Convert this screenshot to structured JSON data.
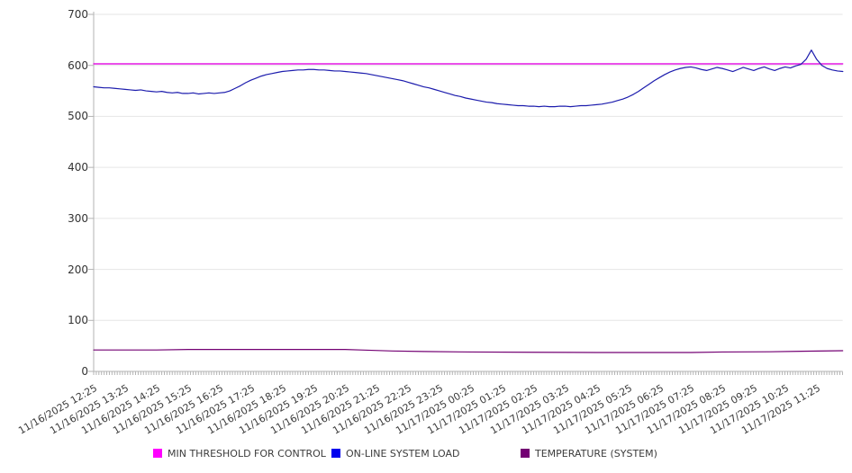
{
  "chart_data": {
    "type": "line",
    "title": "",
    "grid": "horizontal",
    "legend_position": "bottom",
    "colors": {
      "grid": "#e6e6e6",
      "axis": "#b3b3b3",
      "tick_text": "#3a3a3a"
    },
    "y_axis": {
      "min": 0,
      "max": 700,
      "ticks": [
        0,
        100,
        200,
        300,
        400,
        500,
        600,
        700
      ]
    },
    "x_axis": {
      "tick_interval_hours": 1,
      "end_hours": 23.83,
      "minor_tick_interval_hours": 0.0833,
      "tick_labels": [
        "11/16/2025 12:25",
        "11/16/2025 13:25",
        "11/16/2025 14:25",
        "11/16/2025 15:25",
        "11/16/2025 16:25",
        "11/16/2025 17:25",
        "11/16/2025 18:25",
        "11/16/2025 19:25",
        "11/16/2025 20:25",
        "11/16/2025 21:25",
        "11/16/2025 22:25",
        "11/16/2025 23:25",
        "11/17/2025 00:25",
        "11/17/2025 01:25",
        "11/17/2025 02:25",
        "11/17/2025 03:25",
        "11/17/2025 04:25",
        "11/17/2025 05:25",
        "11/17/2025 06:25",
        "11/17/2025 07:25",
        "11/17/2025 08:25",
        "11/17/2025 09:25",
        "11/17/2025 10:25",
        "11/17/2025 11:25"
      ]
    },
    "series": [
      {
        "name": "MIN THRESHOLD FOR CONTROL",
        "color": "#e316e3",
        "swatch_color": "#ff00ff",
        "stroke_width": 1.4,
        "points_t": [
          0,
          23.83
        ],
        "points_v": [
          603,
          603
        ]
      },
      {
        "name": "ON-LINE SYSTEM LOAD",
        "color": "#1c1cad",
        "swatch_color": "#0000ee",
        "stroke_width": 1.2,
        "start_hours": 0,
        "step_hours": 0.166667,
        "values": [
          558,
          557,
          556,
          556,
          555,
          554,
          553,
          552,
          551,
          552,
          550,
          549,
          548,
          549,
          547,
          546,
          547,
          545,
          545,
          546,
          544,
          545,
          546,
          545,
          546,
          547,
          550,
          555,
          560,
          566,
          571,
          575,
          579,
          582,
          584,
          586,
          588,
          589,
          590,
          591,
          591,
          592,
          592,
          591,
          591,
          590,
          589,
          589,
          588,
          587,
          586,
          585,
          584,
          582,
          580,
          578,
          576,
          574,
          572,
          570,
          567,
          564,
          561,
          558,
          556,
          553,
          550,
          547,
          544,
          541,
          539,
          536,
          534,
          532,
          530,
          528,
          527,
          525,
          524,
          523,
          522,
          521,
          521,
          520,
          520,
          519,
          520,
          519,
          519,
          520,
          520,
          519,
          520,
          521,
          521,
          522,
          523,
          524,
          526,
          528,
          531,
          534,
          538,
          543,
          549,
          556,
          563,
          570,
          576,
          582,
          587,
          591,
          594,
          596,
          597,
          595,
          592,
          590,
          593,
          596,
          594,
          591,
          588,
          592,
          596,
          593,
          590,
          594,
          597,
          593,
          590,
          594,
          597,
          595,
          599,
          602,
          612,
          630,
          612,
          600,
          594,
          591,
          589,
          588
        ]
      },
      {
        "name": "TEMPERATURE (SYSTEM)",
        "color": "#730073",
        "swatch_color": "#730073",
        "stroke_width": 1.2,
        "points_t": [
          0,
          2,
          3,
          8,
          8.5,
          9.5,
          10.5,
          12,
          14,
          16,
          19,
          20,
          21.5,
          22.5,
          23.83
        ],
        "points_v": [
          42,
          42,
          43,
          43,
          42,
          40,
          39,
          38,
          37.5,
          37,
          37,
          38,
          38.5,
          39.5,
          40.5
        ]
      }
    ]
  },
  "legend": {
    "items": [
      {
        "label": "MIN THRESHOLD FOR CONTROL",
        "color": "#ff00ff"
      },
      {
        "label": "ON-LINE SYSTEM LOAD",
        "color": "#0000ee"
      },
      {
        "label": "TEMPERATURE (SYSTEM)",
        "color": "#730073"
      }
    ]
  }
}
